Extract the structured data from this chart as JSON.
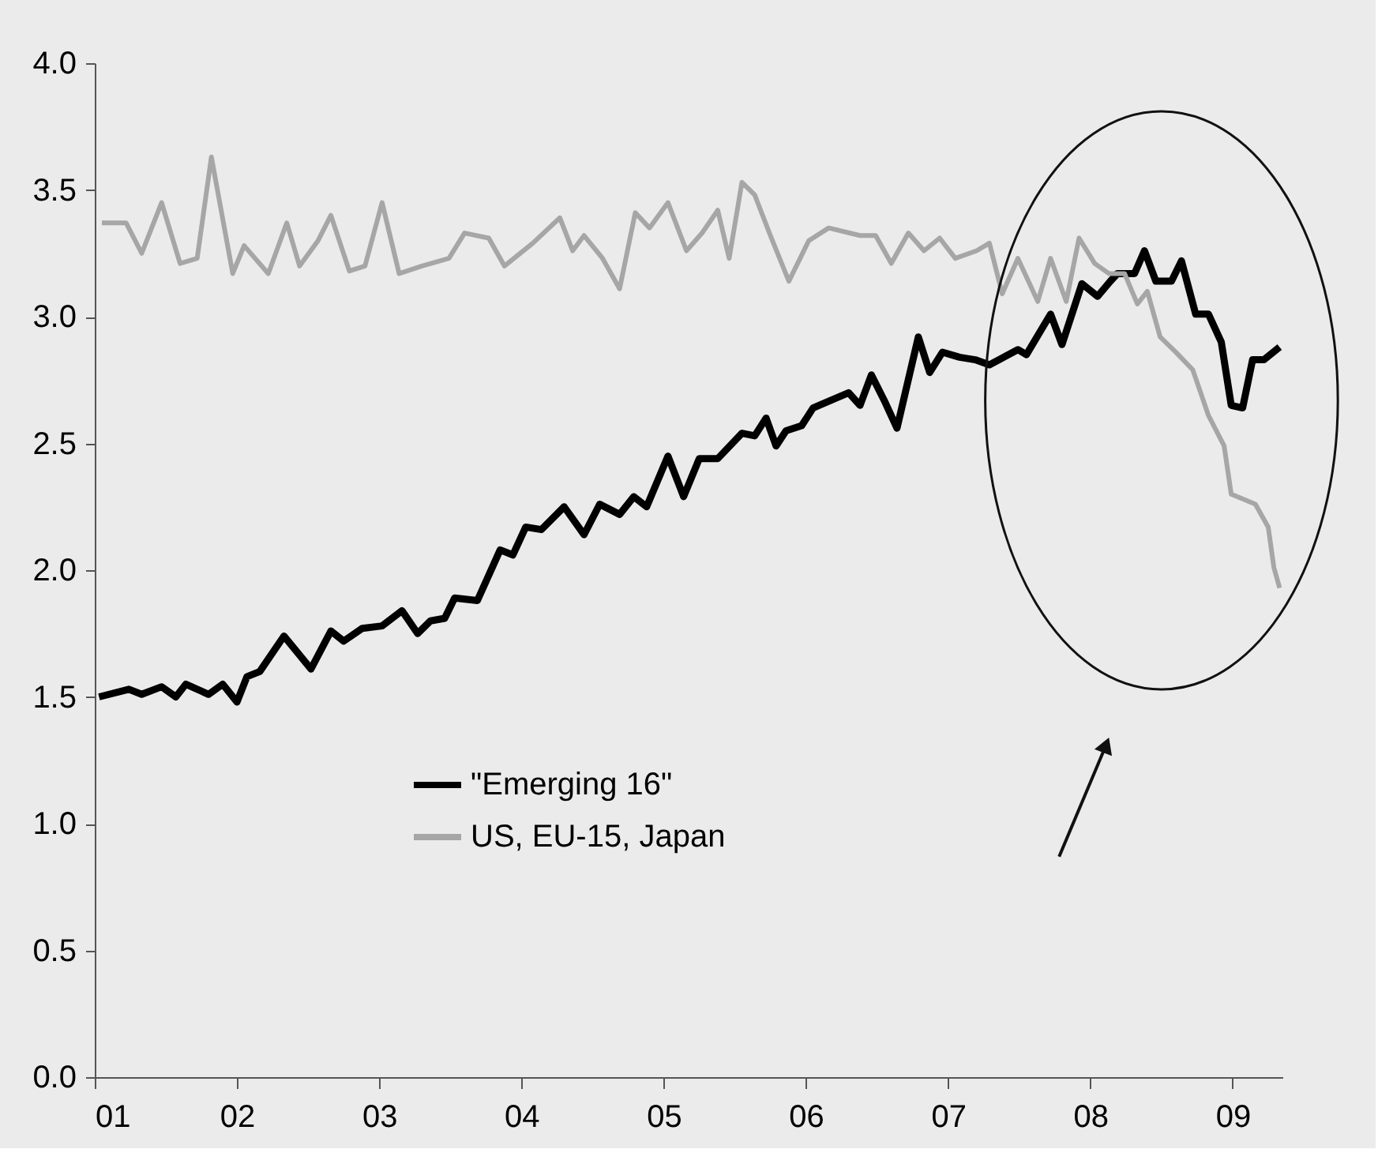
{
  "chart_data": {
    "type": "line",
    "xlim": [
      2001,
      2009.35
    ],
    "xticks": [
      {
        "value": 2001,
        "label": "01"
      },
      {
        "value": 2002,
        "label": "02"
      },
      {
        "value": 2003,
        "label": "03"
      },
      {
        "value": 2004,
        "label": "04"
      },
      {
        "value": 2005,
        "label": "05"
      },
      {
        "value": 2006,
        "label": "06"
      },
      {
        "value": 2007,
        "label": "07"
      },
      {
        "value": 2008,
        "label": "08"
      },
      {
        "value": 2009,
        "label": "09"
      }
    ],
    "ylim": [
      0,
      4
    ],
    "yticks": [
      {
        "value": 0,
        "label": "0.0"
      },
      {
        "value": 0.5,
        "label": "0.5"
      },
      {
        "value": 1,
        "label": "1.0"
      },
      {
        "value": 1.5,
        "label": "1.5"
      },
      {
        "value": 2,
        "label": "2.0"
      },
      {
        "value": 2.5,
        "label": "2.5"
      },
      {
        "value": 3,
        "label": "3.0"
      },
      {
        "value": 3.5,
        "label": "3.5"
      },
      {
        "value": 4,
        "label": "4.0"
      }
    ],
    "grid": false,
    "legend": "bottom left",
    "marker": "none",
    "line_style": "solid",
    "series": [
      {
        "name": "\"Emerging 16\"",
        "color": "#000000",
        "x": [
          2001.03,
          2001.24,
          2001.33,
          2001.47,
          2001.57,
          2001.64,
          2001.8,
          2001.9,
          2002.0,
          2002.07,
          2002.16,
          2002.33,
          2002.52,
          2002.66,
          2002.75,
          2002.88,
          2003.02,
          2003.16,
          2003.27,
          2003.36,
          2003.46,
          2003.53,
          2003.69,
          2003.85,
          2003.94,
          2004.03,
          2004.14,
          2004.3,
          2004.44,
          2004.55,
          2004.69,
          2004.79,
          2004.88,
          2005.03,
          2005.14,
          2005.25,
          2005.38,
          2005.55,
          2005.64,
          2005.72,
          2005.79,
          2005.86,
          2005.97,
          2006.05,
          2006.3,
          2006.38,
          2006.46,
          2006.55,
          2006.64,
          2006.79,
          2006.87,
          2006.96,
          2007.08,
          2007.19,
          2007.29,
          2007.49,
          2007.55,
          2007.72,
          2007.8,
          2007.94,
          2008.05,
          2008.14,
          2008.19,
          2008.31,
          2008.38,
          2008.46,
          2008.57,
          2008.64,
          2008.74,
          2008.83,
          2008.92,
          2008.99,
          2009.07,
          2009.14,
          2009.22,
          2009.33
        ],
        "values": [
          1.5,
          1.53,
          1.51,
          1.54,
          1.5,
          1.55,
          1.51,
          1.55,
          1.48,
          1.58,
          1.6,
          1.74,
          1.61,
          1.76,
          1.72,
          1.77,
          1.78,
          1.84,
          1.75,
          1.8,
          1.81,
          1.89,
          1.88,
          2.08,
          2.06,
          2.17,
          2.16,
          2.25,
          2.14,
          2.26,
          2.22,
          2.29,
          2.25,
          2.45,
          2.29,
          2.44,
          2.44,
          2.54,
          2.53,
          2.6,
          2.49,
          2.55,
          2.57,
          2.64,
          2.7,
          2.65,
          2.77,
          2.67,
          2.56,
          2.92,
          2.78,
          2.86,
          2.84,
          2.83,
          2.81,
          2.87,
          2.85,
          3.01,
          2.89,
          3.13,
          3.08,
          3.14,
          3.17,
          3.17,
          3.26,
          3.14,
          3.14,
          3.22,
          3.01,
          3.01,
          2.9,
          2.65,
          2.64,
          2.83,
          2.83,
          2.88
        ]
      },
      {
        "name": "US, EU-15, Japan",
        "color": "#a6a6a6",
        "x": [
          2001.05,
          2001.22,
          2001.33,
          2001.47,
          2001.6,
          2001.72,
          2001.82,
          2001.97,
          2002.05,
          2002.22,
          2002.35,
          2002.44,
          2002.57,
          2002.66,
          2002.79,
          2002.9,
          2003.02,
          2003.14,
          2003.3,
          2003.49,
          2003.6,
          2003.77,
          2003.88,
          2004.08,
          2004.27,
          2004.36,
          2004.44,
          2004.57,
          2004.69,
          2004.8,
          2004.9,
          2005.03,
          2005.16,
          2005.27,
          2005.38,
          2005.46,
          2005.55,
          2005.64,
          2005.75,
          2005.88,
          2006.02,
          2006.16,
          2006.38,
          2006.49,
          2006.6,
          2006.72,
          2006.83,
          2006.94,
          2007.05,
          2007.2,
          2007.29,
          2007.38,
          2007.49,
          2007.63,
          2007.72,
          2007.83,
          2007.92,
          2008.03,
          2008.13,
          2008.24,
          2008.33,
          2008.4,
          2008.49,
          2008.6,
          2008.72,
          2008.83,
          2008.94,
          2008.99,
          2009.16,
          2009.25,
          2009.29,
          2009.33
        ],
        "values": [
          3.37,
          3.37,
          3.25,
          3.45,
          3.21,
          3.23,
          3.63,
          3.17,
          3.28,
          3.17,
          3.37,
          3.2,
          3.3,
          3.4,
          3.18,
          3.2,
          3.45,
          3.17,
          3.2,
          3.23,
          3.33,
          3.31,
          3.2,
          3.29,
          3.39,
          3.26,
          3.32,
          3.23,
          3.11,
          3.41,
          3.35,
          3.45,
          3.26,
          3.33,
          3.42,
          3.23,
          3.53,
          3.48,
          3.32,
          3.14,
          3.3,
          3.35,
          3.32,
          3.32,
          3.21,
          3.33,
          3.26,
          3.31,
          3.23,
          3.26,
          3.29,
          3.09,
          3.23,
          3.06,
          3.23,
          3.06,
          3.31,
          3.21,
          3.17,
          3.17,
          3.05,
          3.1,
          2.92,
          2.86,
          2.79,
          2.61,
          2.49,
          2.3,
          2.26,
          2.17,
          2.01,
          1.93
        ]
      }
    ]
  }
}
